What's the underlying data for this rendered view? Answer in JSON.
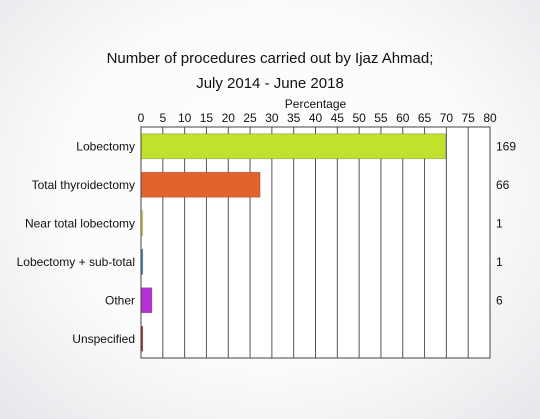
{
  "chart_data": {
    "type": "bar",
    "orientation": "horizontal",
    "title": "Number of procedures carried out by Ijaz Ahmad;",
    "subtitle": "July 2014 - June 2018",
    "xlabel": "Percentage",
    "xlim": [
      0,
      80
    ],
    "xticks": [
      "0",
      "5",
      "10",
      "15",
      "20",
      "25",
      "30",
      "35",
      "40",
      "45",
      "50",
      "55",
      "60",
      "65",
      "70",
      "75",
      "80"
    ],
    "grid": true,
    "categories": [
      "Lobectomy",
      "Total thyroidectomy",
      "Near total lobectomy",
      "Lobectomy + sub-total",
      "Other",
      "Unspecified"
    ],
    "values": [
      69.8,
      27.3,
      0.4,
      0.4,
      2.5,
      0.4
    ],
    "counts": [
      "169",
      "66",
      "1",
      "1",
      "6",
      ""
    ],
    "colors": [
      "#bfe22d",
      "#e2632b",
      "#f2e85a",
      "#3a86c8",
      "#b530d6",
      "#b02828"
    ]
  }
}
